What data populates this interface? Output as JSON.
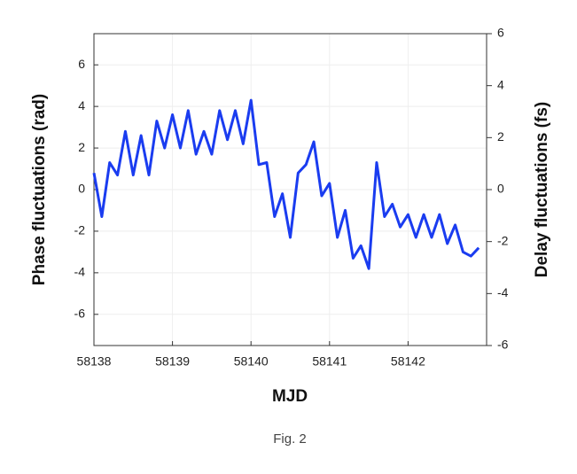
{
  "chart_data": {
    "type": "line",
    "x_label": "MJD",
    "y_label": "Phase fluctuations (rad)",
    "y2_label": "Delay fluctuations (fs)",
    "caption": "Fig. 2",
    "x": [
      58138.0,
      58138.1,
      58138.2,
      58138.3,
      58138.4,
      58138.5,
      58138.6,
      58138.7,
      58138.8,
      58138.9,
      58139.0,
      58139.1,
      58139.2,
      58139.3,
      58139.4,
      58139.5,
      58139.6,
      58139.7,
      58139.8,
      58139.9,
      58140.0,
      58140.1,
      58140.2,
      58140.3,
      58140.4,
      58140.5,
      58140.6,
      58140.7,
      58140.8,
      58140.9,
      58141.0,
      58141.1,
      58141.2,
      58141.3,
      58141.4,
      58141.5,
      58141.6,
      58141.7,
      58141.8,
      58141.9,
      58142.0,
      58142.1,
      58142.2,
      58142.3,
      58142.4,
      58142.5,
      58142.6,
      58142.7,
      58142.8,
      58142.9
    ],
    "series": [
      {
        "color": "#1a3cf0",
        "values": [
          0.8,
          -1.3,
          1.3,
          0.7,
          2.8,
          0.7,
          2.6,
          0.7,
          3.3,
          2.0,
          3.6,
          2.0,
          3.8,
          1.7,
          2.8,
          1.7,
          3.8,
          2.4,
          3.8,
          2.2,
          4.3,
          1.2,
          1.3,
          -1.3,
          -0.2,
          -2.3,
          0.8,
          1.2,
          2.3,
          -0.3,
          0.3,
          -2.3,
          -1.0,
          -3.3,
          -2.7,
          -3.8,
          1.3,
          -1.3,
          -0.7,
          -1.8,
          -1.2,
          -2.3,
          -1.2,
          -2.3,
          -1.2,
          -2.6,
          -1.7,
          -3.0,
          -3.2,
          -2.8
        ]
      }
    ],
    "xlim": [
      58138,
      58143
    ],
    "xticks": [
      58138,
      58139,
      58140,
      58141,
      58142
    ],
    "ylim": [
      -7.5,
      7.5
    ],
    "yticks": [
      -6,
      -4,
      -2,
      0,
      2,
      4,
      6
    ],
    "y2lim": [
      -6,
      6
    ],
    "y2ticks": [
      -6,
      -4,
      -2,
      0,
      2,
      4,
      6
    ],
    "grid": true
  }
}
